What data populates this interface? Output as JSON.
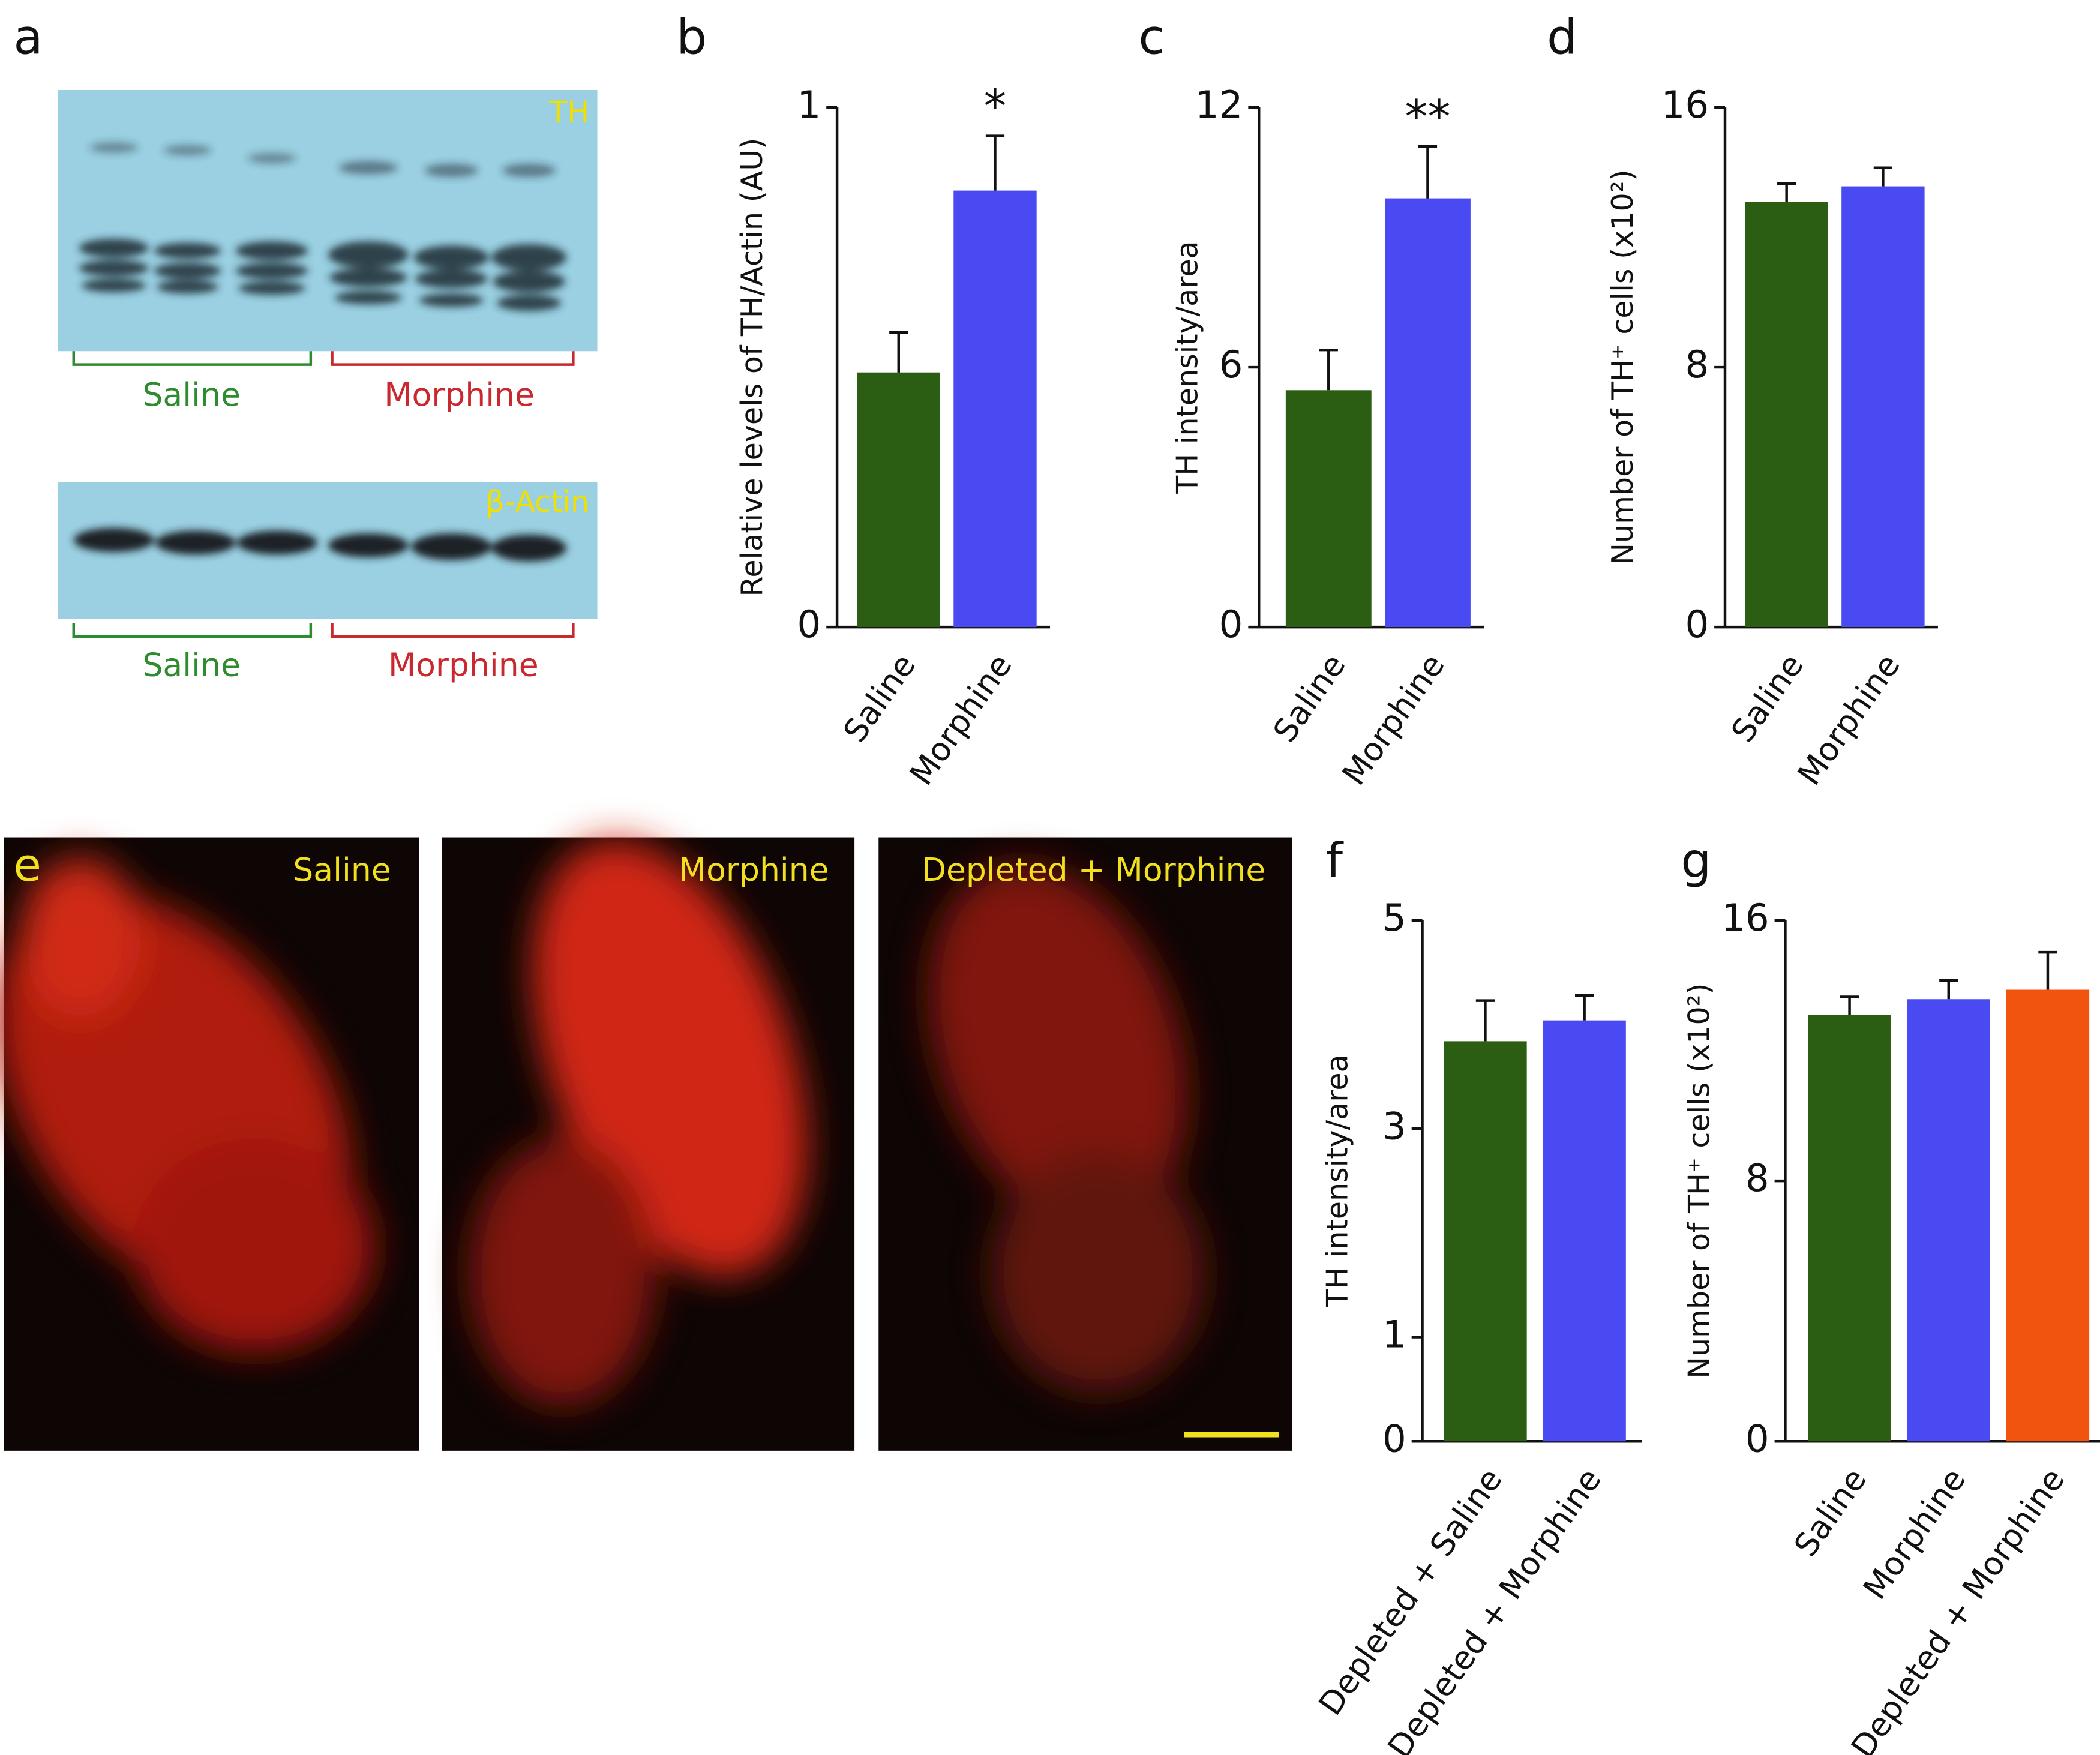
{
  "panel_a": {
    "label": "a",
    "blots": [
      {
        "marker": "TH",
        "groups": [
          "Saline",
          "Morphine"
        ]
      },
      {
        "marker": "β-Actin",
        "groups": [
          "Saline",
          "Morphine"
        ]
      }
    ]
  },
  "panel_e": {
    "label": "e",
    "images": [
      "Saline",
      "Morphine",
      "Depleted + Morphine"
    ]
  },
  "chart_data": [
    {
      "type": "bar",
      "panel": "b",
      "ylabel": "Relative levels of  TH/Actin (AU)",
      "categories": [
        "Saline",
        "Morphine"
      ],
      "values": [
        0.49,
        0.84
      ],
      "errors": [
        0.077,
        0.105
      ],
      "annotations": [
        null,
        "*"
      ],
      "colors": [
        "#2b5e12",
        "#4a4af2"
      ],
      "ylim": [
        0,
        1
      ],
      "yticks": [
        0,
        1
      ]
    },
    {
      "type": "bar",
      "panel": "c",
      "ylabel": "TH intensity/area",
      "categories": [
        "Saline",
        "Morphine"
      ],
      "values": [
        5.47,
        9.9
      ],
      "errors": [
        0.93,
        1.2
      ],
      "annotations": [
        null,
        "**"
      ],
      "colors": [
        "#2b5e12",
        "#4a4af2"
      ],
      "ylim": [
        0,
        12
      ],
      "yticks": [
        0,
        6,
        12
      ]
    },
    {
      "type": "bar",
      "panel": "d",
      "ylabel": "Number of TH⁺ cells (x10²)",
      "categories": [
        "Saline",
        "Morphine"
      ],
      "values": [
        13.1,
        13.57
      ],
      "errors": [
        0.55,
        0.57
      ],
      "colors": [
        "#2b5e12",
        "#4a4af2"
      ],
      "ylim": [
        0,
        16
      ],
      "yticks": [
        0,
        8,
        16
      ]
    },
    {
      "type": "bar",
      "panel": "f",
      "ylabel": "TH intensity/area",
      "categories": [
        "Depleted + Saline",
        "Depleted + Morphine"
      ],
      "values": [
        3.84,
        4.04
      ],
      "errors": [
        0.39,
        0.24
      ],
      "colors": [
        "#2b5e12",
        "#4a4af2"
      ],
      "ylim": [
        0,
        5
      ],
      "yticks": [
        0,
        1,
        3,
        5
      ]
    },
    {
      "type": "bar",
      "panel": "g",
      "ylabel": "Number of TH⁺ cells (x10²)",
      "categories": [
        "Saline",
        "Morphine",
        "Depleted + Morphine"
      ],
      "values": [
        13.1,
        13.58,
        13.87
      ],
      "errors": [
        0.55,
        0.58,
        1.15
      ],
      "colors": [
        "#2b5e12",
        "#4a4af2",
        "#f0540f"
      ],
      "ylim": [
        0,
        16
      ],
      "yticks": [
        0,
        8,
        16
      ]
    }
  ]
}
